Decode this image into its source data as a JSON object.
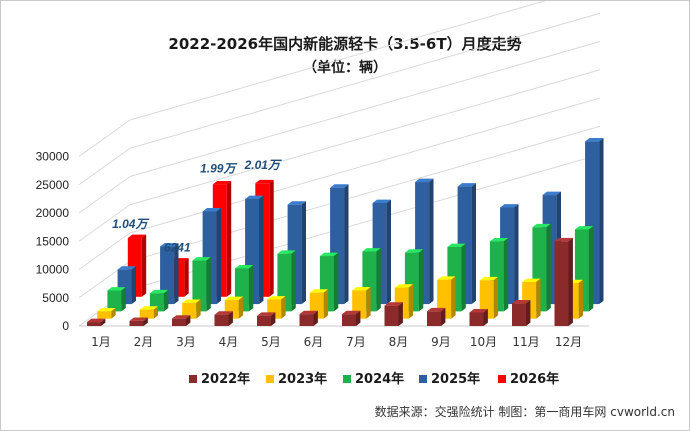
{
  "chart_data": {
    "type": "bar",
    "title": "2022-2026年国内新能源轻卡（3.5-6T）月度走势",
    "subtitle": "（单位：辆）",
    "categories": [
      "1月",
      "2月",
      "3月",
      "4月",
      "5月",
      "6月",
      "7月",
      "8月",
      "9月",
      "10月",
      "11月",
      "12月"
    ],
    "y_ticks": [
      "0",
      "5000",
      "10000",
      "15000",
      "20000",
      "25000",
      "30000"
    ],
    "ylim": [
      0,
      30000
    ],
    "legend_position": "bottom",
    "series": [
      {
        "name": "2022年",
        "color": "#8b2a2a",
        "values": [
          700,
          900,
          1300,
          2000,
          1800,
          2100,
          2100,
          3600,
          2600,
          2400,
          4000,
          15000
        ]
      },
      {
        "name": "2023年",
        "color": "#ffc000",
        "values": [
          1300,
          1600,
          2800,
          3300,
          3400,
          4600,
          5000,
          5500,
          6900,
          6800,
          6500,
          6300
        ]
      },
      {
        "name": "2024年",
        "color": "#1fb24a",
        "values": [
          3700,
          3200,
          9000,
          7600,
          10200,
          9800,
          10600,
          10400,
          11400,
          12400,
          14900,
          14500
        ]
      },
      {
        "name": "2025年",
        "color": "#2e5f9e",
        "values": [
          6100,
          10200,
          16400,
          18600,
          17600,
          20600,
          17900,
          21600,
          20800,
          17100,
          19300,
          28800
        ]
      },
      {
        "name": "2026年",
        "color": "#ff0000",
        "values": [
          10400,
          6241,
          19900,
          20100,
          null,
          null,
          null,
          null,
          null,
          null,
          null,
          null
        ]
      }
    ],
    "data_labels": [
      {
        "series": "2026年",
        "category": "1月",
        "text": "1.04万"
      },
      {
        "series": "2026年",
        "category": "2月",
        "text": "6241"
      },
      {
        "series": "2026年",
        "category": "3月",
        "text": "1.99万"
      },
      {
        "series": "2026年",
        "category": "4月",
        "text": "2.01万"
      }
    ]
  },
  "source_text": "数据来源：交强险统计   制图：第一商用车网 cvworld.cn"
}
